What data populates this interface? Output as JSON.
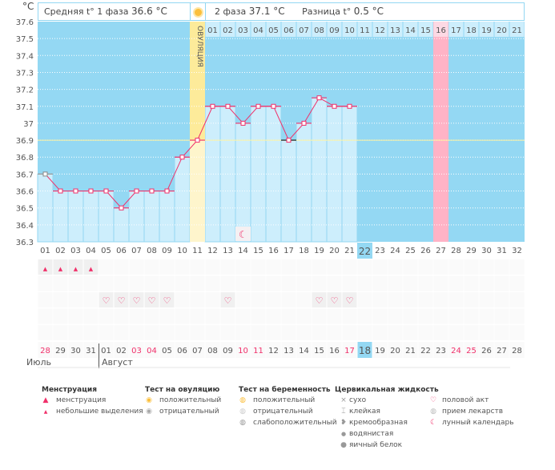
{
  "unit": "°C",
  "header": {
    "phase1_label": "Средняя t° 1 фаза",
    "phase1_value": "36.6 °C",
    "phase2_label": "2 фаза",
    "phase2_value": "37.1 °C",
    "diff_label": "Разница t°",
    "diff_value": "0.5 °C",
    "ovulation_label": "ОВУЛЯЦИЯ"
  },
  "colors": {
    "background_plot": "#94d8f3",
    "bar": "#cdeefc",
    "ovulation": "#fdeb9a",
    "highlight": "#ffb3c6",
    "line": "#f0306a",
    "today": "#94d8f3"
  },
  "chart_data": {
    "type": "line",
    "ylabel": "°C",
    "ylim": [
      36.3,
      37.6
    ],
    "yticks": [
      "37.6",
      "37.5",
      "37.4",
      "37.3",
      "37.2",
      "37.1",
      "37",
      "36.9",
      "36.8",
      "36.7",
      "36.6",
      "36.5",
      "36.4",
      "36.3"
    ],
    "cycle_days": [
      1,
      2,
      3,
      4,
      5,
      6,
      7,
      8,
      9,
      10,
      11,
      12,
      13,
      14,
      15,
      16,
      17,
      18,
      19,
      20,
      21
    ],
    "temperatures": [
      36.7,
      36.6,
      36.6,
      36.6,
      36.6,
      36.5,
      36.6,
      36.6,
      36.6,
      36.8,
      36.9,
      37.1,
      37.1,
      37.0,
      37.1,
      37.1,
      36.9,
      37.0,
      37.15,
      37.1,
      37.1
    ],
    "coverline": 36.9,
    "ovulation_day": 11,
    "highlight_cycle_day": 27,
    "today_cycle_day": 22
  },
  "phase2_days": [
    "01",
    "02",
    "03",
    "04",
    "05",
    "06",
    "07",
    "08",
    "09",
    "10",
    "11",
    "12",
    "13",
    "14",
    "15",
    "16",
    "17",
    "18",
    "19",
    "20",
    "21"
  ],
  "cycle_day_labels": [
    "01",
    "02",
    "03",
    "04",
    "05",
    "06",
    "07",
    "08",
    "09",
    "10",
    "11",
    "12",
    "13",
    "14",
    "15",
    "16",
    "17",
    "18",
    "19",
    "20",
    "21",
    "22",
    "23",
    "24",
    "25",
    "26",
    "27",
    "28",
    "29",
    "30",
    "31",
    "32"
  ],
  "dates": [
    "28",
    "29",
    "30",
    "31",
    "01",
    "02",
    "03",
    "04",
    "05",
    "06",
    "07",
    "08",
    "09",
    "10",
    "11",
    "12",
    "13",
    "14",
    "15",
    "16",
    "17",
    "18",
    "19",
    "20",
    "21",
    "22",
    "23",
    "24",
    "25",
    "26",
    "27",
    "28"
  ],
  "red_dates": [
    0,
    6,
    7,
    13,
    14,
    20,
    27,
    28
  ],
  "months": [
    "Июль",
    "Август"
  ],
  "menstruation_days": [
    1,
    2,
    3,
    4
  ],
  "intercourse_days": [
    5,
    6,
    7,
    8,
    9,
    13,
    19,
    20,
    21
  ],
  "lunar_day": 14,
  "legend": {
    "menstruation": {
      "title": "Менструация",
      "items": [
        "менструация",
        "небольшие выделения"
      ]
    },
    "ovulation_test": {
      "title": "Тест на овуляцию",
      "items": [
        "положительный",
        "отрицательный"
      ]
    },
    "pregnancy_test": {
      "title": "Тест на беременность",
      "items": [
        "положительный",
        "отрицательный",
        "слабоположительный"
      ]
    },
    "cervical": {
      "title": "Цервикальная жидкость",
      "items": [
        "сухо",
        "клейкая",
        "кремообразная",
        "водянистая",
        "яичный белок"
      ]
    },
    "other": {
      "items": [
        "половой акт",
        "прием лекарств",
        "лунный календарь"
      ]
    }
  }
}
